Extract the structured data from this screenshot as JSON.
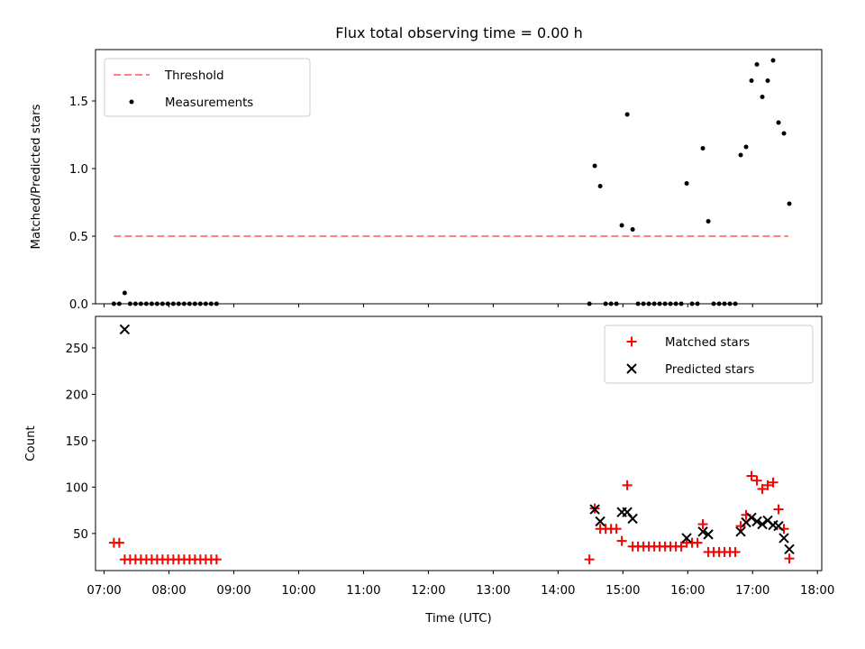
{
  "figure": {
    "title": "Flux total observing time = 0.00 h"
  },
  "chart_data": [
    {
      "type": "scatter",
      "panel": "top",
      "ylabel": "Matched/Predicted stars",
      "xlabel": "",
      "xlim": [
        "06:52",
        "18:04"
      ],
      "ylim": [
        0,
        1.88
      ],
      "yticks": [
        0.0,
        0.5,
        1.0,
        1.5
      ],
      "ytick_labels": [
        "0.0",
        "0.5",
        "1.0",
        "1.5"
      ],
      "grid": false,
      "legend": {
        "placement": "upper-left",
        "entries": [
          "Threshold",
          "Measurements"
        ]
      },
      "series": [
        {
          "name": "Threshold",
          "kind": "dashed-line",
          "color": "#ff7f7f",
          "points": [
            {
              "x": "07:09",
              "y": 0.5
            },
            {
              "x": "17:33",
              "y": 0.5
            }
          ]
        },
        {
          "name": "Measurements",
          "kind": "points",
          "color": "#000000",
          "points": [
            {
              "x": "07:09",
              "y": 0.0
            },
            {
              "x": "07:14",
              "y": 0.0
            },
            {
              "x": "07:19",
              "y": 0.08
            },
            {
              "x": "07:24",
              "y": 0.0
            },
            {
              "x": "07:29",
              "y": 0.0
            },
            {
              "x": "07:34",
              "y": 0.0
            },
            {
              "x": "07:39",
              "y": 0.0
            },
            {
              "x": "07:44",
              "y": 0.0
            },
            {
              "x": "07:49",
              "y": 0.0
            },
            {
              "x": "07:54",
              "y": 0.0
            },
            {
              "x": "07:59",
              "y": 0.0
            },
            {
              "x": "08:04",
              "y": 0.0
            },
            {
              "x": "08:09",
              "y": 0.0
            },
            {
              "x": "08:14",
              "y": 0.0
            },
            {
              "x": "08:19",
              "y": 0.0
            },
            {
              "x": "08:24",
              "y": 0.0
            },
            {
              "x": "08:29",
              "y": 0.0
            },
            {
              "x": "08:34",
              "y": 0.0
            },
            {
              "x": "08:39",
              "y": 0.0
            },
            {
              "x": "08:44",
              "y": 0.0
            },
            {
              "x": "14:29",
              "y": 0.0
            },
            {
              "x": "14:34",
              "y": 1.02
            },
            {
              "x": "14:39",
              "y": 0.87
            },
            {
              "x": "14:44",
              "y": 0.0
            },
            {
              "x": "14:49",
              "y": 0.0
            },
            {
              "x": "14:54",
              "y": 0.0
            },
            {
              "x": "14:59",
              "y": 0.58
            },
            {
              "x": "15:04",
              "y": 1.4
            },
            {
              "x": "15:09",
              "y": 0.55
            },
            {
              "x": "15:14",
              "y": 0.0
            },
            {
              "x": "15:19",
              "y": 0.0
            },
            {
              "x": "15:24",
              "y": 0.0
            },
            {
              "x": "15:29",
              "y": 0.0
            },
            {
              "x": "15:34",
              "y": 0.0
            },
            {
              "x": "15:39",
              "y": 0.0
            },
            {
              "x": "15:44",
              "y": 0.0
            },
            {
              "x": "15:49",
              "y": 0.0
            },
            {
              "x": "15:54",
              "y": 0.0
            },
            {
              "x": "15:59",
              "y": 0.89
            },
            {
              "x": "16:04",
              "y": 0.0
            },
            {
              "x": "16:09",
              "y": 0.0
            },
            {
              "x": "16:14",
              "y": 1.15
            },
            {
              "x": "16:19",
              "y": 0.61
            },
            {
              "x": "16:24",
              "y": 0.0
            },
            {
              "x": "16:29",
              "y": 0.0
            },
            {
              "x": "16:34",
              "y": 0.0
            },
            {
              "x": "16:39",
              "y": 0.0
            },
            {
              "x": "16:44",
              "y": 0.0
            },
            {
              "x": "16:49",
              "y": 1.1
            },
            {
              "x": "16:54",
              "y": 1.16
            },
            {
              "x": "16:59",
              "y": 1.65
            },
            {
              "x": "17:04",
              "y": 1.77
            },
            {
              "x": "17:09",
              "y": 1.53
            },
            {
              "x": "17:14",
              "y": 1.65
            },
            {
              "x": "17:19",
              "y": 1.8
            },
            {
              "x": "17:24",
              "y": 1.34
            },
            {
              "x": "17:29",
              "y": 1.26
            },
            {
              "x": "17:34",
              "y": 0.74
            }
          ]
        }
      ]
    },
    {
      "type": "scatter",
      "panel": "bottom",
      "ylabel": "Count",
      "xlabel": "Time (UTC)",
      "xlim": [
        "06:52",
        "18:04"
      ],
      "ylim": [
        10,
        284
      ],
      "yticks": [
        50,
        100,
        150,
        200,
        250
      ],
      "ytick_labels": [
        "50",
        "100",
        "150",
        "200",
        "250"
      ],
      "xticks": [
        "07:00",
        "08:00",
        "09:00",
        "10:00",
        "11:00",
        "12:00",
        "13:00",
        "14:00",
        "15:00",
        "16:00",
        "17:00",
        "18:00"
      ],
      "grid": false,
      "legend": {
        "placement": "upper-right",
        "entries": [
          "Matched stars",
          "Predicted stars"
        ]
      },
      "series": [
        {
          "name": "Matched stars",
          "kind": "plus",
          "color": "#ff0000",
          "points": [
            {
              "x": "07:09",
              "y": 40
            },
            {
              "x": "07:14",
              "y": 40
            },
            {
              "x": "07:19",
              "y": 22
            },
            {
              "x": "07:24",
              "y": 22
            },
            {
              "x": "07:29",
              "y": 22
            },
            {
              "x": "07:34",
              "y": 22
            },
            {
              "x": "07:39",
              "y": 22
            },
            {
              "x": "07:44",
              "y": 22
            },
            {
              "x": "07:49",
              "y": 22
            },
            {
              "x": "07:54",
              "y": 22
            },
            {
              "x": "07:59",
              "y": 22
            },
            {
              "x": "08:04",
              "y": 22
            },
            {
              "x": "08:09",
              "y": 22
            },
            {
              "x": "08:14",
              "y": 22
            },
            {
              "x": "08:19",
              "y": 22
            },
            {
              "x": "08:24",
              "y": 22
            },
            {
              "x": "08:29",
              "y": 22
            },
            {
              "x": "08:34",
              "y": 22
            },
            {
              "x": "08:39",
              "y": 22
            },
            {
              "x": "08:44",
              "y": 22
            },
            {
              "x": "14:29",
              "y": 22
            },
            {
              "x": "14:34",
              "y": 77
            },
            {
              "x": "14:39",
              "y": 55
            },
            {
              "x": "14:44",
              "y": 55
            },
            {
              "x": "14:49",
              "y": 55
            },
            {
              "x": "14:54",
              "y": 55
            },
            {
              "x": "14:59",
              "y": 42
            },
            {
              "x": "15:04",
              "y": 102
            },
            {
              "x": "15:09",
              "y": 36
            },
            {
              "x": "15:14",
              "y": 36
            },
            {
              "x": "15:19",
              "y": 36
            },
            {
              "x": "15:24",
              "y": 36
            },
            {
              "x": "15:29",
              "y": 36
            },
            {
              "x": "15:34",
              "y": 36
            },
            {
              "x": "15:39",
              "y": 36
            },
            {
              "x": "15:44",
              "y": 36
            },
            {
              "x": "15:49",
              "y": 36
            },
            {
              "x": "15:54",
              "y": 36
            },
            {
              "x": "15:59",
              "y": 40
            },
            {
              "x": "16:04",
              "y": 40
            },
            {
              "x": "16:09",
              "y": 40
            },
            {
              "x": "16:14",
              "y": 60
            },
            {
              "x": "16:19",
              "y": 30
            },
            {
              "x": "16:24",
              "y": 30
            },
            {
              "x": "16:29",
              "y": 30
            },
            {
              "x": "16:34",
              "y": 30
            },
            {
              "x": "16:39",
              "y": 30
            },
            {
              "x": "16:44",
              "y": 30
            },
            {
              "x": "16:49",
              "y": 58
            },
            {
              "x": "16:54",
              "y": 70
            },
            {
              "x": "16:59",
              "y": 112
            },
            {
              "x": "17:04",
              "y": 107
            },
            {
              "x": "17:09",
              "y": 98
            },
            {
              "x": "17:14",
              "y": 102
            },
            {
              "x": "17:19",
              "y": 105
            },
            {
              "x": "17:24",
              "y": 76
            },
            {
              "x": "17:29",
              "y": 55
            },
            {
              "x": "17:34",
              "y": 23
            }
          ]
        },
        {
          "name": "Predicted stars",
          "kind": "cross",
          "color": "#000000",
          "points": [
            {
              "x": "07:19",
              "y": 270
            },
            {
              "x": "14:34",
              "y": 76
            },
            {
              "x": "14:39",
              "y": 63
            },
            {
              "x": "14:59",
              "y": 73
            },
            {
              "x": "15:04",
              "y": 73
            },
            {
              "x": "15:09",
              "y": 66
            },
            {
              "x": "15:59",
              "y": 45
            },
            {
              "x": "16:14",
              "y": 52
            },
            {
              "x": "16:19",
              "y": 49
            },
            {
              "x": "16:49",
              "y": 52
            },
            {
              "x": "16:54",
              "y": 62
            },
            {
              "x": "16:59",
              "y": 67
            },
            {
              "x": "17:04",
              "y": 63
            },
            {
              "x": "17:09",
              "y": 60
            },
            {
              "x": "17:14",
              "y": 64
            },
            {
              "x": "17:19",
              "y": 59
            },
            {
              "x": "17:24",
              "y": 58
            },
            {
              "x": "17:29",
              "y": 45
            },
            {
              "x": "17:34",
              "y": 33
            }
          ]
        }
      ]
    }
  ]
}
